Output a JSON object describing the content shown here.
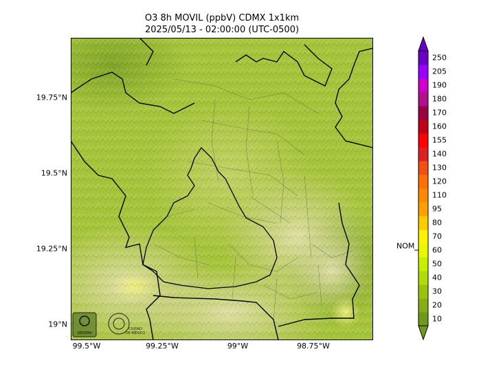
{
  "title_line1": "O3 8h MOVIL (ppbV) CDMX 1x1km",
  "title_line2": "2025/05/13 - 02:00:00 (UTC-0500)",
  "lat_labels": [
    "19.75°N",
    "19.5°N",
    "19.25°N",
    "19°N"
  ],
  "lon_labels": [
    "99.5°W",
    "99.25°W",
    "99°W",
    "98.75°W"
  ],
  "colorbar": {
    "ticks": [
      "10",
      "20",
      "30",
      "40",
      "50",
      "60",
      "70",
      "80",
      "95",
      "110",
      "120",
      "130",
      "140",
      "155",
      "160",
      "170",
      "180",
      "190",
      "205",
      "250"
    ],
    "colors": [
      "#6f9a1a",
      "#86ad14",
      "#9ac20e",
      "#b2dc08",
      "#c8ee00",
      "#e8f800",
      "#fff200",
      "#ffcc00",
      "#ffa000",
      "#ff8a00",
      "#ff7000",
      "#f05010",
      "#e02020",
      "#ff0000",
      "#c00018",
      "#9a0040",
      "#b0108a",
      "#d000c8",
      "#9a00ff",
      "#6a00c8"
    ],
    "nom_label": "NOM",
    "nom_value": 60
  },
  "logos": [
    "SEDEMA",
    "CIUDAD DE MÉXICO"
  ],
  "colors": {
    "map_base": "#a8c83a",
    "boundary": "#000000"
  }
}
